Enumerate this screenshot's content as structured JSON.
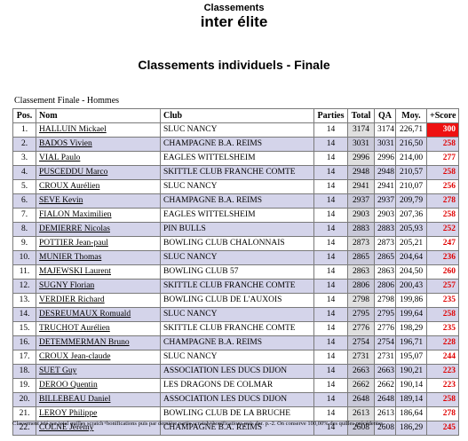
{
  "header": {
    "small_title": "Classements",
    "big_title": "inter élite",
    "subtitle": "Classements individuels - Finale"
  },
  "table": {
    "caption": "Classement Finale - Hommes",
    "columns": [
      "Pos.",
      "Nom",
      "Club",
      "Parties",
      "Total",
      "QA",
      "Moy.",
      "+Score"
    ],
    "rows": [
      {
        "pos": "1.",
        "name": "HALLUIN Mickael",
        "club": "SLUC NANCY",
        "parties": "14",
        "total": "3174",
        "qa": "3174",
        "moy": "226,71",
        "score": "300"
      },
      {
        "pos": "2.",
        "name": "BADOS Vivien",
        "club": "CHAMPAGNE B.A. REIMS",
        "parties": "14",
        "total": "3031",
        "qa": "3031",
        "moy": "216,50",
        "score": "258"
      },
      {
        "pos": "3.",
        "name": "VIAL Paulo",
        "club": "EAGLES WITTELSHEIM",
        "parties": "14",
        "total": "2996",
        "qa": "2996",
        "moy": "214,00",
        "score": "277"
      },
      {
        "pos": "4.",
        "name": "PUSCEDDU Marco",
        "club": "SKITTLE CLUB FRANCHE COMTE",
        "parties": "14",
        "total": "2948",
        "qa": "2948",
        "moy": "210,57",
        "score": "258"
      },
      {
        "pos": "5.",
        "name": "CROUX Aurélien",
        "club": "SLUC NANCY",
        "parties": "14",
        "total": "2941",
        "qa": "2941",
        "moy": "210,07",
        "score": "256"
      },
      {
        "pos": "6.",
        "name": "SEVE Kevin",
        "club": "CHAMPAGNE B.A. REIMS",
        "parties": "14",
        "total": "2937",
        "qa": "2937",
        "moy": "209,79",
        "score": "278"
      },
      {
        "pos": "7.",
        "name": "FIALON Maximilien",
        "club": "EAGLES WITTELSHEIM",
        "parties": "14",
        "total": "2903",
        "qa": "2903",
        "moy": "207,36",
        "score": "258"
      },
      {
        "pos": "8.",
        "name": "DEMIERRE Nicolas",
        "club": "PIN BULLS",
        "parties": "14",
        "total": "2883",
        "qa": "2883",
        "moy": "205,93",
        "score": "252"
      },
      {
        "pos": "9.",
        "name": "POTTIER Jean-paul",
        "club": "BOWLING CLUB CHALONNAIS",
        "parties": "14",
        "total": "2873",
        "qa": "2873",
        "moy": "205,21",
        "score": "247"
      },
      {
        "pos": "10.",
        "name": "MUNIER Thomas",
        "club": "SLUC NANCY",
        "parties": "14",
        "total": "2865",
        "qa": "2865",
        "moy": "204,64",
        "score": "236"
      },
      {
        "pos": "11.",
        "name": "MAJEWSKI Laurent",
        "club": "BOWLING CLUB 57",
        "parties": "14",
        "total": "2863",
        "qa": "2863",
        "moy": "204,50",
        "score": "260"
      },
      {
        "pos": "12.",
        "name": "SUGNY Florian",
        "club": "SKITTLE CLUB FRANCHE COMTE",
        "parties": "14",
        "total": "2806",
        "qa": "2806",
        "moy": "200,43",
        "score": "257"
      },
      {
        "pos": "13.",
        "name": "VERDIER Richard",
        "club": "BOWLING CLUB DE L'AUXOIS",
        "parties": "14",
        "total": "2798",
        "qa": "2798",
        "moy": "199,86",
        "score": "235"
      },
      {
        "pos": "14.",
        "name": "DESREUMAUX Romuald",
        "club": "SLUC NANCY",
        "parties": "14",
        "total": "2795",
        "qa": "2795",
        "moy": "199,64",
        "score": "258"
      },
      {
        "pos": "15.",
        "name": "TRUCHOT Aurélien",
        "club": "SKITTLE CLUB FRANCHE COMTE",
        "parties": "14",
        "total": "2776",
        "qa": "2776",
        "moy": "198,29",
        "score": "235"
      },
      {
        "pos": "16.",
        "name": "DETEMMERMAN Bruno",
        "club": "CHAMPAGNE B.A. REIMS",
        "parties": "14",
        "total": "2754",
        "qa": "2754",
        "moy": "196,71",
        "score": "228"
      },
      {
        "pos": "17.",
        "name": "CROUX Jean-claude",
        "club": "SLUC NANCY",
        "parties": "14",
        "total": "2731",
        "qa": "2731",
        "moy": "195,07",
        "score": "244"
      },
      {
        "pos": "18.",
        "name": "SUET Guy",
        "club": "ASSOCIATION LES DUCS DIJON",
        "parties": "14",
        "total": "2663",
        "qa": "2663",
        "moy": "190,21",
        "score": "223"
      },
      {
        "pos": "19.",
        "name": "DEROO Quentin",
        "club": "LES DRAGONS DE COLMAR",
        "parties": "14",
        "total": "2662",
        "qa": "2662",
        "moy": "190,14",
        "score": "223"
      },
      {
        "pos": "20.",
        "name": "BILLEBEAU Daniel",
        "club": "ASSOCIATION LES DUCS DIJON",
        "parties": "14",
        "total": "2648",
        "qa": "2648",
        "moy": "189,14",
        "score": "258"
      },
      {
        "pos": "21.",
        "name": "LEROY Philippe",
        "club": "BOWLING CLUB DE LA BRUCHE",
        "parties": "14",
        "total": "2613",
        "qa": "2613",
        "moy": "186,64",
        "score": "278"
      },
      {
        "pos": "22.",
        "name": "COLNE Jérémy",
        "club": "CHAMPAGNE B.A. REIMS",
        "parties": "14",
        "total": "2608",
        "qa": "2608",
        "moy": "186,29",
        "score": "245"
      }
    ]
  },
  "footer": "Classement trié par total quilles scratch+bonifications puis par dernière partie scratch+bonifications puis der. p.-2. On conserve 100,00% des quilles précédentes.",
  "colors": {
    "even_row": "#d4d4ea",
    "score_red": "#e00000",
    "top_score_bg": "#ee1111"
  }
}
